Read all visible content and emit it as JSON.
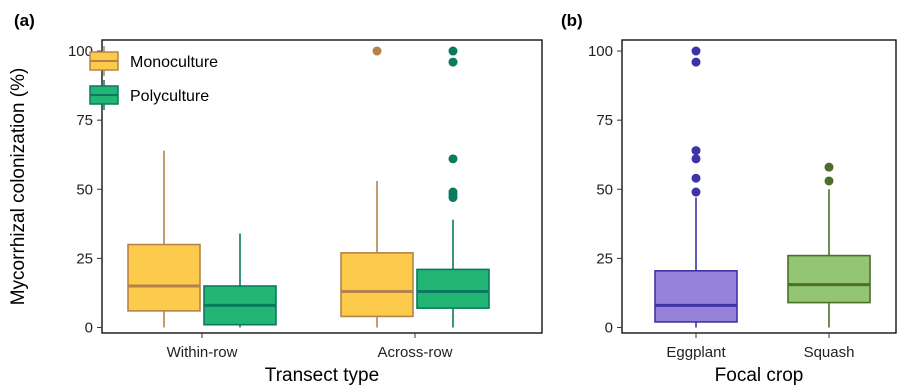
{
  "chart_data": [
    {
      "type": "boxplot",
      "panel_label": "(a)",
      "xlabel": "Transect type",
      "ylabel": "Mycorrhizal colonization (%)",
      "ylim": [
        -2,
        104
      ],
      "yticks": [
        0,
        25,
        50,
        75,
        100
      ],
      "categories": [
        "Within-row",
        "Across-row"
      ],
      "legend": {
        "placement": "top-left"
      },
      "series": [
        {
          "name": "Monoculture",
          "fill": "#FDCB4B",
          "stroke": "#B5834A",
          "boxes": [
            {
              "category": "Within-row",
              "whisker_low": 0,
              "q1": 6,
              "median": 15,
              "q3": 30,
              "whisker_high": 64,
              "outliers": []
            },
            {
              "category": "Across-row",
              "whisker_low": 0,
              "q1": 4,
              "median": 13,
              "q3": 27,
              "whisker_high": 53,
              "outliers": [
                100
              ]
            }
          ]
        },
        {
          "name": "Polyculture",
          "fill": "#22B573",
          "stroke": "#0A7A5E",
          "boxes": [
            {
              "category": "Within-row",
              "whisker_low": 0,
              "q1": 1,
              "median": 8,
              "q3": 15,
              "whisker_high": 34,
              "outliers": []
            },
            {
              "category": "Across-row",
              "whisker_low": 0,
              "q1": 7,
              "median": 13,
              "q3": 21,
              "whisker_high": 39,
              "outliers": [
                47,
                48,
                49,
                61,
                96,
                100
              ]
            }
          ]
        }
      ]
    },
    {
      "type": "boxplot",
      "panel_label": "(b)",
      "xlabel": "Focal crop",
      "ylabel": "",
      "ylim": [
        -2,
        104
      ],
      "yticks": [
        0,
        25,
        50,
        75,
        100
      ],
      "categories": [
        "Eggplant",
        "Squash"
      ],
      "boxes": [
        {
          "category": "Eggplant",
          "fill": "#9682D8",
          "stroke": "#3E34A6",
          "whisker_low": 0,
          "q1": 2,
          "median": 8,
          "q3": 20.5,
          "whisker_high": 47,
          "outliers": [
            49,
            54,
            61,
            64,
            96,
            100
          ]
        },
        {
          "category": "Squash",
          "fill": "#93C572",
          "stroke": "#4B6E2A",
          "whisker_low": 0,
          "q1": 9,
          "median": 15.5,
          "q3": 26,
          "whisker_high": 50,
          "outliers": [
            53,
            58
          ]
        }
      ]
    }
  ]
}
